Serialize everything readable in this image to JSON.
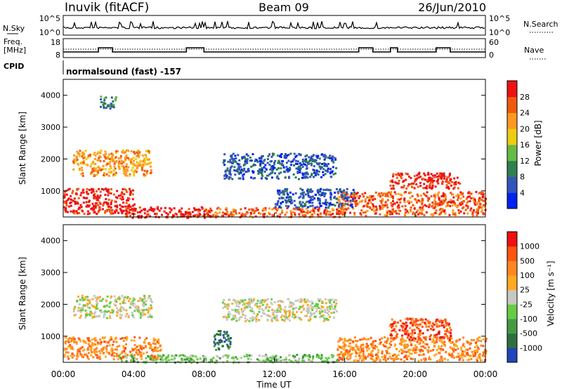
{
  "header": {
    "station": "Inuvik (fitACF)",
    "beam": "Beam 09",
    "date": "26/Jun/2010"
  },
  "noise_panel": {
    "left_label": "N.Sky",
    "left_ticks": [
      "10^5",
      "10^0"
    ],
    "right_label": "N.Search",
    "right_ticks": [
      "10^5",
      "10^0"
    ]
  },
  "freq_panel": {
    "left_label_1": "Freq.",
    "left_label_2": "[MHz]",
    "left_ticks": [
      "18",
      "8"
    ],
    "right_label": "Nave",
    "right_ticks": [
      "60",
      "0"
    ]
  },
  "cpid": {
    "label": "CPID",
    "value": "normalsound (fast) -157"
  },
  "power_panel": {
    "ylabel": "Slant Range [km]",
    "yticks": [
      "4000",
      "3000",
      "2000",
      "1000"
    ],
    "colorbar_label": "Power [dB]",
    "colorbar_ticks": [
      "28",
      "24",
      "20",
      "16",
      "12",
      "8",
      "4"
    ],
    "colors": [
      "#0022ee",
      "#3355bb",
      "#2f7f4f",
      "#66bb44",
      "#eecc11",
      "#ff9922",
      "#f05a10",
      "#ee1111"
    ]
  },
  "velocity_panel": {
    "ylabel": "Slant Range [km]",
    "yticks": [
      "4000",
      "3000",
      "2000",
      "1000"
    ],
    "colorbar_label": "Velocity [m s⁻¹]",
    "colorbar_ticks": [
      "1000",
      "500",
      "100",
      "25",
      "-25",
      "-100",
      "-500",
      "-1000"
    ],
    "colors": [
      "#2244bb",
      "#2f6f3f",
      "#449944",
      "#66cc44",
      "#c8c8c0",
      "#ffaa22",
      "#ff8822",
      "#ff5511",
      "#ee1111"
    ]
  },
  "x_axis": {
    "label": "Time UT",
    "ticks": [
      "00:00",
      "04:00",
      "08:00",
      "12:00",
      "16:00",
      "20:00",
      "00:00"
    ]
  },
  "chart_data": {
    "type": "heatmap",
    "x_range_hours": [
      0,
      24
    ],
    "y_range_km": [
      180,
      4500
    ],
    "power_regions": [
      {
        "start_h": 0.0,
        "end_h": 4.0,
        "r1": 300,
        "r2": 1100,
        "level": 7
      },
      {
        "start_h": 3.5,
        "end_h": 8.5,
        "r1": 180,
        "r2": 520,
        "level": 7
      },
      {
        "start_h": 8.0,
        "end_h": 16.0,
        "r1": 200,
        "r2": 500,
        "level": 6
      },
      {
        "start_h": 15.5,
        "end_h": 24.0,
        "r1": 250,
        "r2": 1000,
        "level": 6
      },
      {
        "start_h": 18.5,
        "end_h": 22.5,
        "r1": 1100,
        "r2": 1600,
        "level": 7
      },
      {
        "start_h": 0.5,
        "end_h": 5.0,
        "r1": 1500,
        "r2": 2300,
        "level": 5
      },
      {
        "start_h": 9.0,
        "end_h": 15.5,
        "r1": 1400,
        "r2": 2200,
        "level": 1
      },
      {
        "start_h": 12.0,
        "end_h": 16.5,
        "r1": 500,
        "r2": 1100,
        "level": 1
      },
      {
        "start_h": 2.0,
        "end_h": 3.0,
        "r1": 3600,
        "r2": 4000,
        "level": 2
      }
    ],
    "velocity_regions": [
      {
        "start_h": 0.0,
        "end_h": 5.5,
        "r1": 300,
        "r2": 1000,
        "level": 6
      },
      {
        "start_h": 0.5,
        "end_h": 5.0,
        "r1": 1600,
        "r2": 2300,
        "level": 4
      },
      {
        "start_h": 3.0,
        "end_h": 16.0,
        "r1": 200,
        "r2": 450,
        "level": 3
      },
      {
        "start_h": 8.5,
        "end_h": 9.5,
        "r1": 600,
        "r2": 1200,
        "level": 1
      },
      {
        "start_h": 9.0,
        "end_h": 15.5,
        "r1": 1500,
        "r2": 2200,
        "level": 4
      },
      {
        "start_h": 15.5,
        "end_h": 24.0,
        "r1": 250,
        "r2": 1000,
        "level": 6
      },
      {
        "start_h": 18.5,
        "end_h": 22.0,
        "r1": 900,
        "r2": 1600,
        "level": 7
      }
    ]
  }
}
